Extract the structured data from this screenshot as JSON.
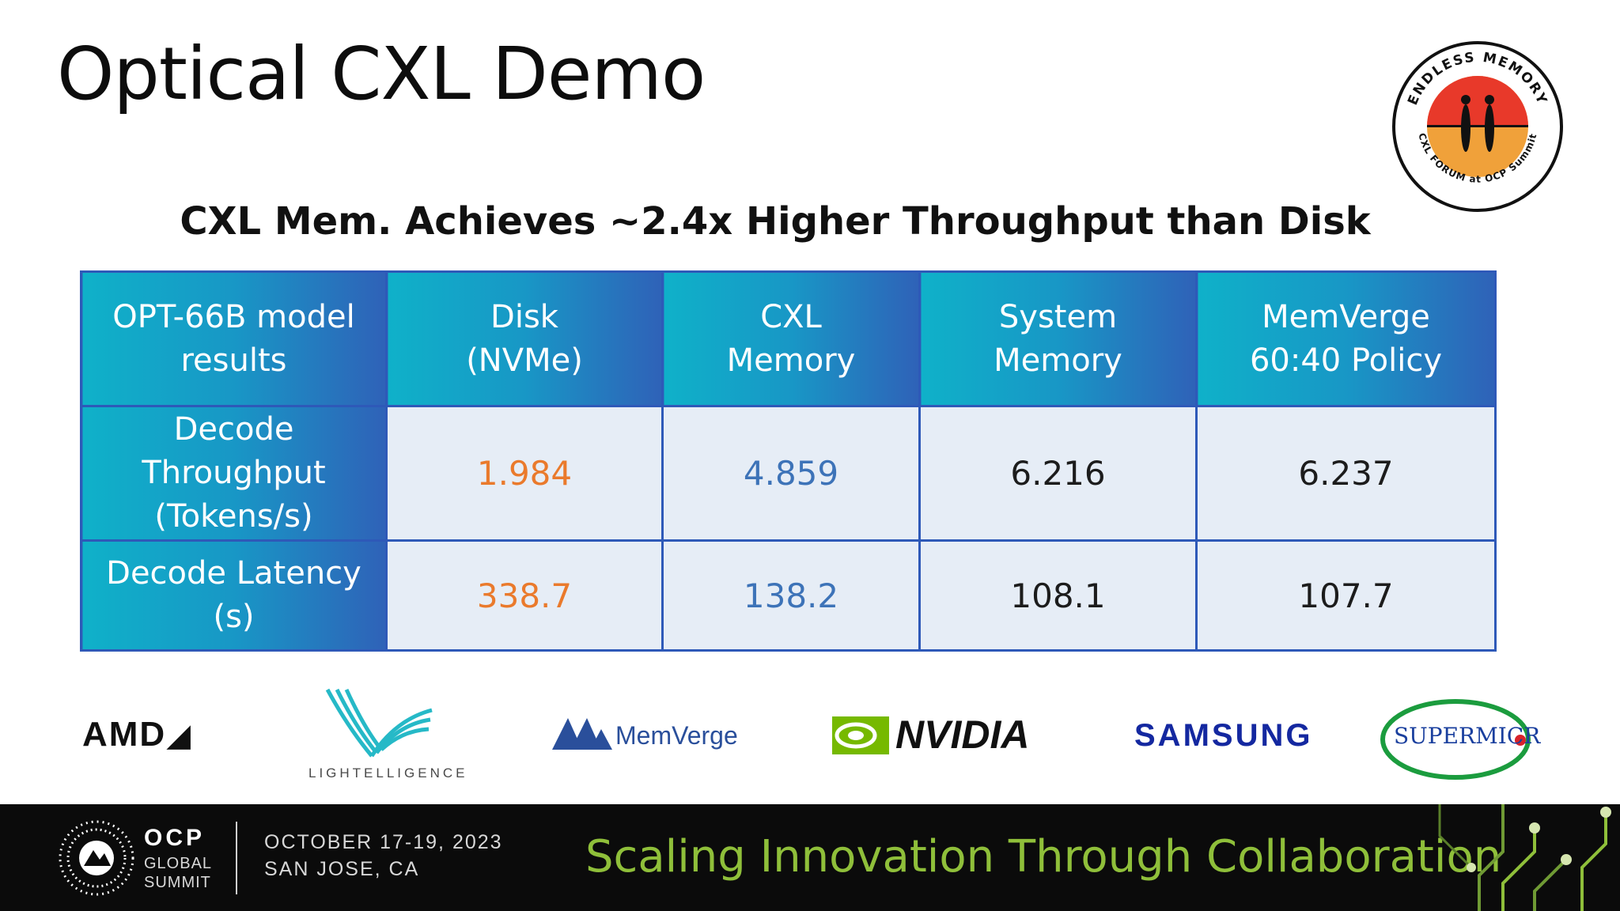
{
  "slide": {
    "title": "Optical CXL Demo",
    "subtitle": "CXL Mem. Achieves ~2.4x Higher Throughput than Disk"
  },
  "badge": {
    "top_text": "ENDLESS MEMORY",
    "bottom_text": "CXL FORUM at OCP Summit"
  },
  "table": {
    "header": {
      "label_line1": "OPT-66B model",
      "label_line2": "results",
      "columns": [
        {
          "line1": "Disk",
          "line2": "(NVMe)"
        },
        {
          "line1": "CXL",
          "line2": "Memory"
        },
        {
          "line1": "System",
          "line2": "Memory"
        },
        {
          "line1": "MemVerge",
          "line2": "60:40 Policy"
        }
      ]
    },
    "rows": [
      {
        "label_line1": "Decode Throughput",
        "label_line2": "(Tokens/s)",
        "values": [
          "1.984",
          "4.859",
          "6.216",
          "6.237"
        ]
      },
      {
        "label_line1": "Decode Latency (s)",
        "label_line2": "",
        "values": [
          "338.7",
          "138.2",
          "108.1",
          "107.7"
        ]
      }
    ]
  },
  "logos": {
    "amd": "AMD",
    "lightelligence": "LIGHTELLIGENCE",
    "memverge": "MemVerge",
    "nvidia": "NVIDIA",
    "samsung": "SAMSUNG",
    "supermicro": "SUPERMICR"
  },
  "footer": {
    "ocp_line1": "OCP",
    "ocp_line2": "GLOBAL",
    "ocp_line3": "SUMMIT",
    "date": "OCTOBER 17-19, 2023",
    "location": "SAN JOSE, CA",
    "tagline": "Scaling Innovation Through Collaboration"
  },
  "colors": {
    "disk_value": "#ea7a2c",
    "cxl_value": "#3d73b8",
    "header_gradient_start": "#0fb1c9",
    "header_gradient_end": "#2f62b8",
    "cell_background": "#e6edf6",
    "tagline": "#8fbf3a"
  }
}
